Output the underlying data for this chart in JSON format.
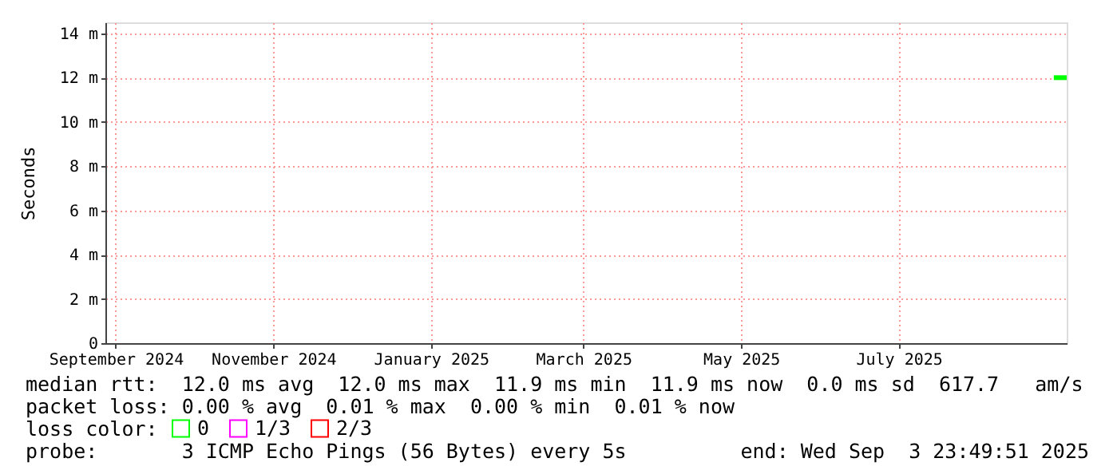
{
  "chart_data": {
    "type": "line",
    "ylabel": "Seconds",
    "xlim": [
      "2024-08-28",
      "2025-09-03T23:49"
    ],
    "xticks": [
      {
        "value": "2024-09-01",
        "label": "September 2024"
      },
      {
        "value": "2024-11-01",
        "label": "November 2024"
      },
      {
        "value": "2025-01-01",
        "label": "January 2025"
      },
      {
        "value": "2025-03-01",
        "label": "March 2025"
      },
      {
        "value": "2025-05-01",
        "label": "May 2025"
      },
      {
        "value": "2025-07-01",
        "label": "July 2025"
      }
    ],
    "ylim": [
      0,
      14.5
    ],
    "yticks": [
      0,
      {
        "value": 2,
        "label": "2 m"
      },
      {
        "value": 4,
        "label": "4 m"
      },
      {
        "value": 6,
        "label": "6 m"
      },
      {
        "value": 8,
        "label": "8 m"
      },
      {
        "value": 10,
        "label": "10 m"
      },
      {
        "value": 12,
        "label": "12 m"
      },
      {
        "value": 14,
        "label": "14 m"
      }
    ],
    "grid": true,
    "legend": "bottom left",
    "legend_title": "loss color:",
    "series": [
      {
        "name": "0",
        "color": "#00ff00",
        "x": [
          "2025-08-30",
          "2025-09-03T23:49"
        ],
        "values": [
          12,
          12
        ]
      },
      {
        "name": "1/3",
        "color": "#ff00ff"
      },
      {
        "name": "2/3",
        "color": "#ff0000"
      }
    ],
    "annotations": [
      "median rtt:  12.0 ms avg  12.0 ms max  11.9 ms min  11.9 ms now  0.0 ms sd  617.7   am/s",
      "packet loss: 0.00 % avg  0.01 % max  0.00 % min  0.01 % now",
      "probe:       3 ICMP Echo Pings (56 Bytes) every 5s",
      "end: Wed Sep  3 23:49:51 2025"
    ]
  }
}
